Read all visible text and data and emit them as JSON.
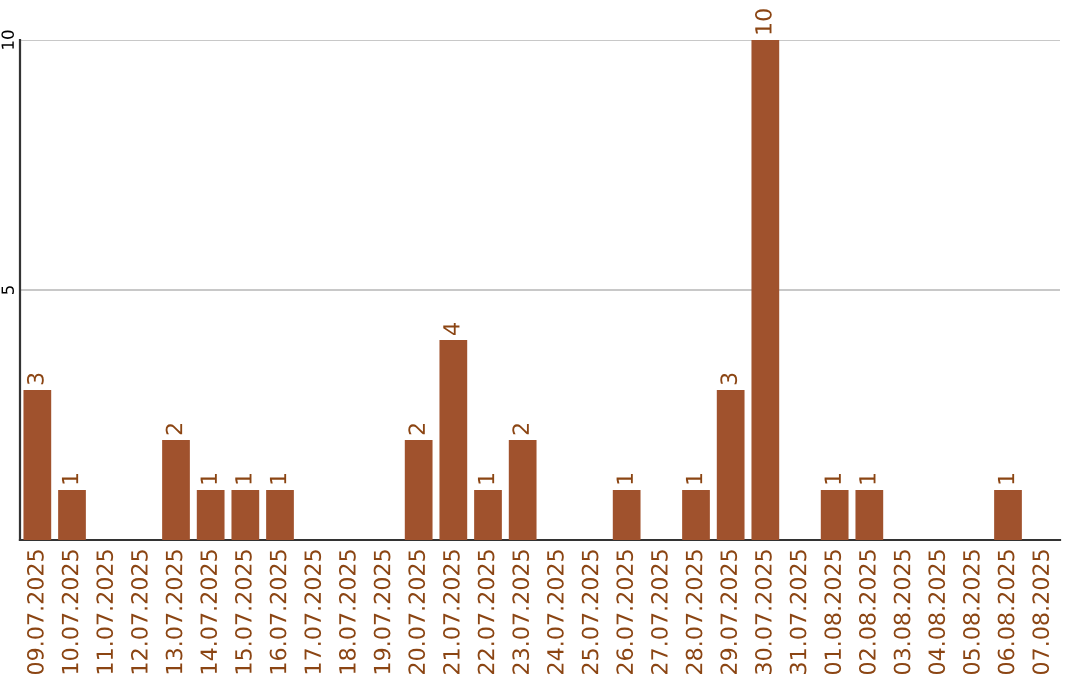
{
  "chart_data": {
    "type": "bar",
    "categories": [
      "09.07.2025",
      "10.07.2025",
      "11.07.2025",
      "12.07.2025",
      "13.07.2025",
      "14.07.2025",
      "15.07.2025",
      "16.07.2025",
      "17.07.2025",
      "18.07.2025",
      "19.07.2025",
      "20.07.2025",
      "21.07.2025",
      "22.07.2025",
      "23.07.2025",
      "24.07.2025",
      "25.07.2025",
      "26.07.2025",
      "27.07.2025",
      "28.07.2025",
      "29.07.2025",
      "30.07.2025",
      "31.07.2025",
      "01.08.2025",
      "02.08.2025",
      "03.08.2025",
      "04.08.2025",
      "05.08.2025",
      "06.08.2025",
      "07.08.2025"
    ],
    "values": [
      3,
      1,
      0,
      0,
      2,
      1,
      1,
      1,
      0,
      0,
      0,
      2,
      4,
      1,
      2,
      0,
      0,
      1,
      0,
      1,
      3,
      10,
      0,
      1,
      1,
      0,
      0,
      0,
      1,
      0
    ],
    "value_labels": [
      "3",
      "1",
      null,
      null,
      "2",
      "1",
      "1",
      "1",
      null,
      null,
      null,
      "2",
      "4",
      "1",
      "2",
      null,
      null,
      "1",
      null,
      "1",
      "3",
      "10",
      null,
      "1",
      "1",
      null,
      null,
      null,
      "1",
      null
    ],
    "color": "#a0522d",
    "ylim": [
      0,
      10
    ],
    "yticks": [
      5,
      10
    ],
    "grid": "y"
  }
}
